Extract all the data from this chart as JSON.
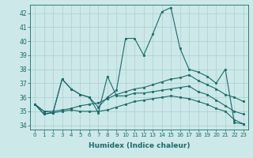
{
  "xlabel": "Humidex (Indice chaleur)",
  "background_color": "#cce8e8",
  "grid_color": "#aad0d0",
  "line_color": "#1a6b6b",
  "xlim": [
    -0.5,
    23.5
  ],
  "ylim": [
    33.7,
    42.6
  ],
  "yticks": [
    34,
    35,
    36,
    37,
    38,
    39,
    40,
    41,
    42
  ],
  "xticks": [
    0,
    1,
    2,
    3,
    4,
    5,
    6,
    7,
    8,
    9,
    10,
    11,
    12,
    13,
    14,
    15,
    16,
    17,
    18,
    19,
    20,
    21,
    22,
    23
  ],
  "series": [
    [
      35.5,
      34.8,
      34.9,
      37.3,
      36.6,
      36.2,
      36.0,
      35.3,
      36.0,
      36.5,
      40.2,
      40.2,
      39.0,
      40.5,
      42.1,
      42.4,
      39.5,
      38.0,
      37.8,
      37.5,
      37.0,
      38.0,
      34.2,
      34.1
    ],
    [
      35.5,
      34.8,
      34.9,
      37.3,
      36.6,
      36.2,
      36.0,
      34.9,
      37.5,
      36.1,
      36.1,
      36.3,
      36.3,
      36.4,
      36.5,
      36.6,
      36.7,
      36.8,
      36.4,
      36.2,
      35.8,
      35.4,
      35.0,
      34.8
    ],
    [
      35.5,
      35.0,
      35.0,
      35.1,
      35.2,
      35.4,
      35.5,
      35.6,
      35.9,
      36.2,
      36.4,
      36.6,
      36.7,
      36.9,
      37.1,
      37.3,
      37.4,
      37.6,
      37.2,
      36.9,
      36.6,
      36.2,
      36.0,
      35.7
    ],
    [
      35.5,
      35.0,
      34.9,
      35.0,
      35.1,
      35.0,
      35.0,
      35.0,
      35.1,
      35.3,
      35.5,
      35.7,
      35.8,
      35.9,
      36.0,
      36.1,
      36.0,
      35.9,
      35.7,
      35.5,
      35.2,
      35.0,
      34.4,
      34.1
    ]
  ]
}
